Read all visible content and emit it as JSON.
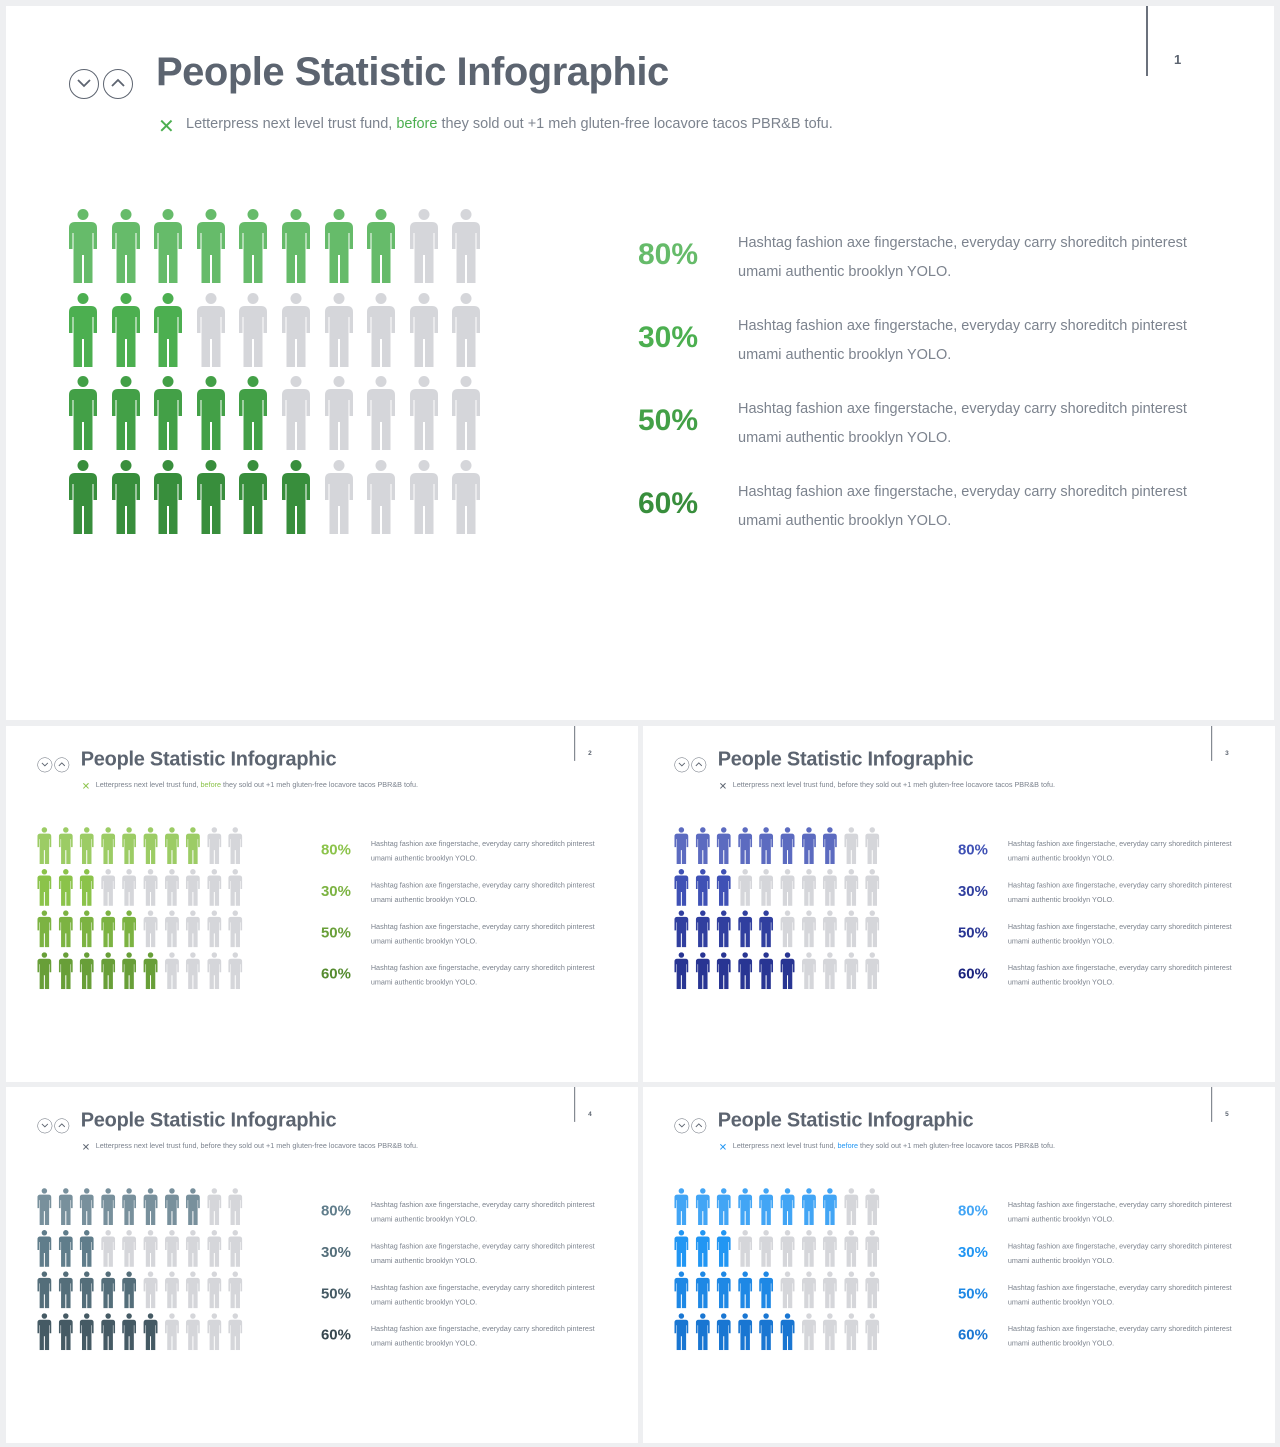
{
  "slide_content": {
    "title": "People Statistic Infographic",
    "subtitle_before": "Letterpress next level trust fund,",
    "subtitle_highlight": "before",
    "subtitle_after": "they sold out +1 meh gluten-free locavore tacos PBR&B tofu.",
    "controls": [
      "chevron-down-icon",
      "chevron-up-icon"
    ],
    "close_icon": "x-icon",
    "stats": [
      {
        "pct": "80%",
        "value": 80,
        "desc": "Hashtag fashion axe fingerstache, everyday carry shoreditch pinterest umami authentic brooklyn YOLO."
      },
      {
        "pct": "30%",
        "value": 30,
        "desc": "Hashtag fashion axe fingerstache, everyday carry shoreditch pinterest umami authentic brooklyn YOLO."
      },
      {
        "pct": "50%",
        "value": 50,
        "desc": "Hashtag fashion axe fingerstache, everyday carry shoreditch pinterest umami authentic brooklyn YOLO."
      },
      {
        "pct": "60%",
        "value": 60,
        "desc": "Hashtag fashion axe fingerstache, everyday carry shoreditch pinterest umami authentic brooklyn YOLO."
      }
    ],
    "people_per_row": 10,
    "inactive_color": "#d5d6da"
  },
  "slides": [
    {
      "page": "1",
      "row_colors": [
        "#66bb6a",
        "#4caf50",
        "#43a047",
        "#388e3c"
      ],
      "pct_colors": [
        "#66bb6a",
        "#4caf50",
        "#43a047",
        "#388e3c"
      ],
      "highlight_color": "#4caf50",
      "x_color": "#4caf50"
    },
    {
      "page": "2",
      "row_colors": [
        "#9ccc65",
        "#8bc34a",
        "#7cb342",
        "#689f38"
      ],
      "pct_colors": [
        "#8bc34a",
        "#7cb342",
        "#689f38",
        "#558b2f"
      ],
      "highlight_color": "#8bc34a",
      "x_color": "#8bc34a"
    },
    {
      "page": "3",
      "row_colors": [
        "#5c6bc0",
        "#3f51b5",
        "#303f9f",
        "#283593"
      ],
      "pct_colors": [
        "#3f51b5",
        "#303f9f",
        "#283593",
        "#1a237e"
      ],
      "highlight_color": "#7c838e",
      "x_color": "#5c6470"
    },
    {
      "page": "4",
      "row_colors": [
        "#78909c",
        "#607d8b",
        "#546e7a",
        "#455a64"
      ],
      "pct_colors": [
        "#607d8b",
        "#546e7a",
        "#455a64",
        "#37474f"
      ],
      "highlight_color": "#7c838e",
      "x_color": "#5c6470"
    },
    {
      "page": "5",
      "row_colors": [
        "#42a5f5",
        "#2196f3",
        "#1e88e5",
        "#1976d2"
      ],
      "pct_colors": [
        "#42a5f5",
        "#2196f3",
        "#1e88e5",
        "#1976d2"
      ],
      "highlight_color": "#2196f3",
      "x_color": "#2196f3"
    }
  ]
}
